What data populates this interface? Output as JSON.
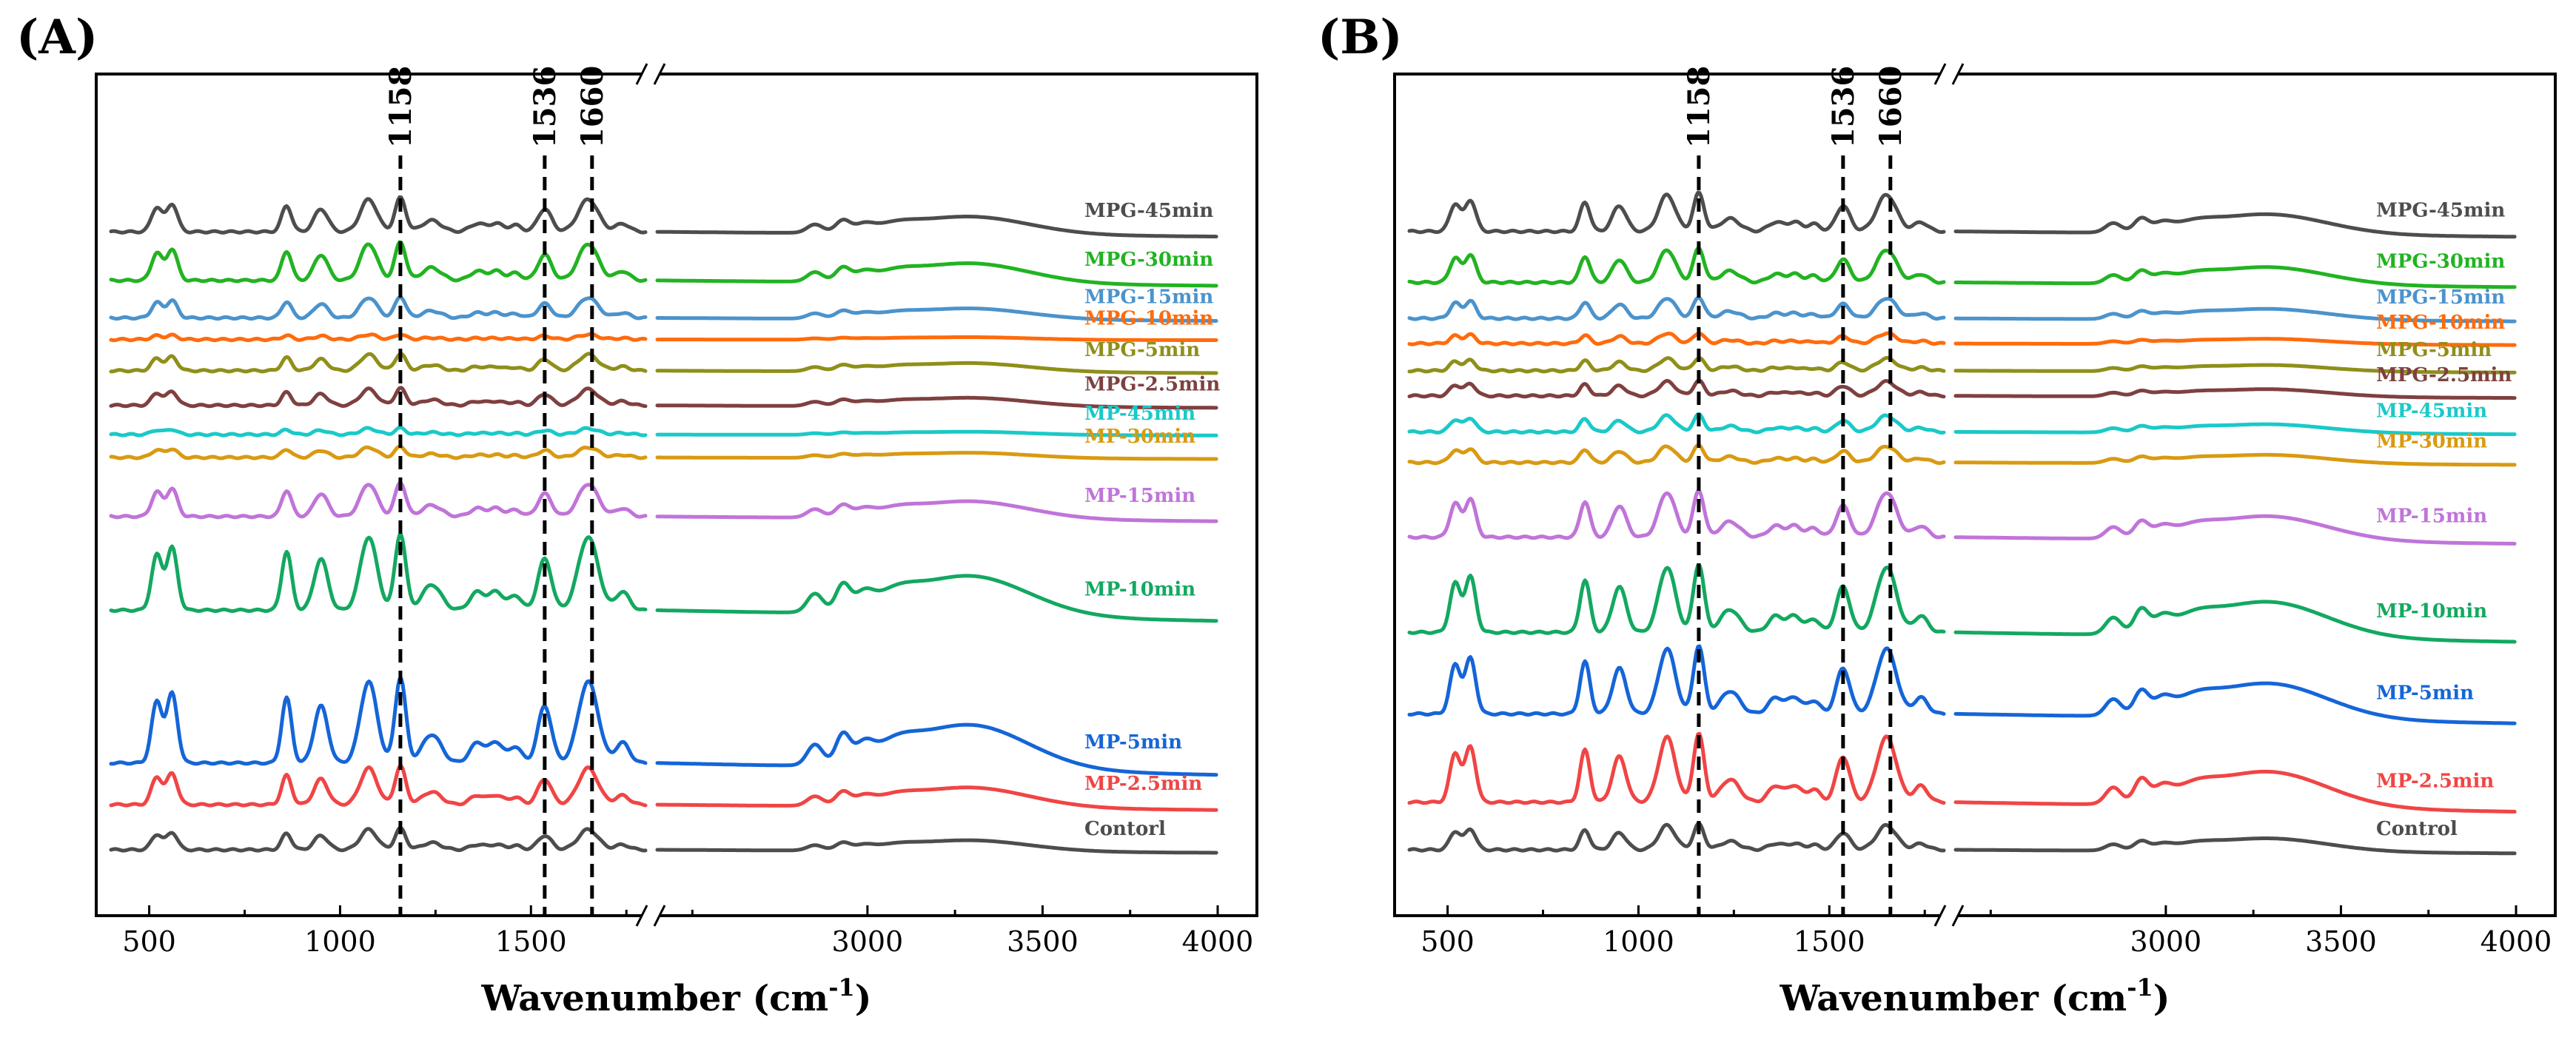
{
  "chart_data": [
    {
      "type": "line",
      "panel_label": "(A)",
      "xlabel": "Wavenumber (cm",
      "xlabel_superscript": "-1",
      "ylabel": "",
      "x_axis_break": true,
      "xlim_left": [
        400,
        1800
      ],
      "xlim_right": [
        2400,
        4000
      ],
      "xticks": [
        500,
        1000,
        1500,
        3000,
        3500,
        4000
      ],
      "xtick_labels": [
        "500",
        "1000",
        "1500",
        "3000",
        "3500",
        "4000"
      ],
      "reference_lines": [
        1158,
        1536,
        1660
      ],
      "reference_labels": [
        "1158",
        "1536",
        "1660"
      ],
      "series": [
        {
          "name": "MPG-45min",
          "color": "#4d4d4d",
          "scale": 0.8,
          "baseline": 0.89
        },
        {
          "name": "MPG-30min",
          "color": "#22b322",
          "scale": 0.9,
          "baseline": 0.82
        },
        {
          "name": "MPG-15min",
          "color": "#4b93cc",
          "scale": 0.5,
          "baseline": 0.766
        },
        {
          "name": "MPG-10min",
          "color": "#ff6b0c",
          "scale": 0.12,
          "baseline": 0.735
        },
        {
          "name": "MPG-5min",
          "color": "#8f8f1a",
          "scale": 0.4,
          "baseline": 0.69
        },
        {
          "name": "MPG-2.5min",
          "color": "#7f4040",
          "scale": 0.4,
          "baseline": 0.64
        },
        {
          "name": "MP-45min",
          "color": "#1ac9c9",
          "scale": 0.15,
          "baseline": 0.598
        },
        {
          "name": "MP-30min",
          "color": "#d99a12",
          "scale": 0.25,
          "baseline": 0.565
        },
        {
          "name": "MP-15min",
          "color": "#c074d9",
          "scale": 0.8,
          "baseline": 0.48
        },
        {
          "name": "MP-10min",
          "color": "#13a860",
          "scale": 1.8,
          "baseline": 0.345
        },
        {
          "name": "MP-5min",
          "color": "#1565d8",
          "scale": 2.0,
          "baseline": 0.125
        },
        {
          "name": "MP-2.5min",
          "color": "#f04545",
          "scale": 0.9,
          "baseline": 0.065
        },
        {
          "name": "Contorl",
          "color": "#4d4d4d",
          "scale": 0.5,
          "baseline": 0.0
        }
      ]
    },
    {
      "type": "line",
      "panel_label": "(B)",
      "xlabel": "Wavenumber (cm",
      "xlabel_superscript": "-1",
      "ylabel": "",
      "x_axis_break": true,
      "xlim_left": [
        400,
        1800
      ],
      "xlim_right": [
        2400,
        4000
      ],
      "xticks": [
        500,
        1000,
        1500,
        3000,
        3500,
        4000
      ],
      "xtick_labels": [
        "500",
        "1000",
        "1500",
        "3000",
        "3500",
        "4000"
      ],
      "reference_lines": [
        1158,
        1536,
        1660
      ],
      "reference_labels": [
        "1158",
        "1536",
        "1660"
      ],
      "series": [
        {
          "name": "MPG-45min",
          "color": "#4d4d4d",
          "scale": 0.9,
          "baseline": 0.91
        },
        {
          "name": "MPG-30min",
          "color": "#22b322",
          "scale": 0.8,
          "baseline": 0.835
        },
        {
          "name": "MPG-15min",
          "color": "#4b93cc",
          "scale": 0.5,
          "baseline": 0.782
        },
        {
          "name": "MPG-10min",
          "color": "#ff6b0c",
          "scale": 0.25,
          "baseline": 0.745
        },
        {
          "name": "MPG-5min",
          "color": "#8f8f1a",
          "scale": 0.3,
          "baseline": 0.705
        },
        {
          "name": "MPG-2.5min",
          "color": "#7f4040",
          "scale": 0.35,
          "baseline": 0.668
        },
        {
          "name": "MP-45min",
          "color": "#1ac9c9",
          "scale": 0.4,
          "baseline": 0.615
        },
        {
          "name": "MP-30min",
          "color": "#d99a12",
          "scale": 0.4,
          "baseline": 0.57
        },
        {
          "name": "MP-15min",
          "color": "#c074d9",
          "scale": 1.1,
          "baseline": 0.46
        },
        {
          "name": "MP-10min",
          "color": "#13a860",
          "scale": 1.6,
          "baseline": 0.32
        },
        {
          "name": "MP-5min",
          "color": "#1565d8",
          "scale": 1.6,
          "baseline": 0.2
        },
        {
          "name": "MP-2.5min",
          "color": "#f04545",
          "scale": 1.6,
          "baseline": 0.07
        },
        {
          "name": "Control",
          "color": "#4d4d4d",
          "scale": 0.6,
          "baseline": 0.0
        }
      ]
    }
  ]
}
